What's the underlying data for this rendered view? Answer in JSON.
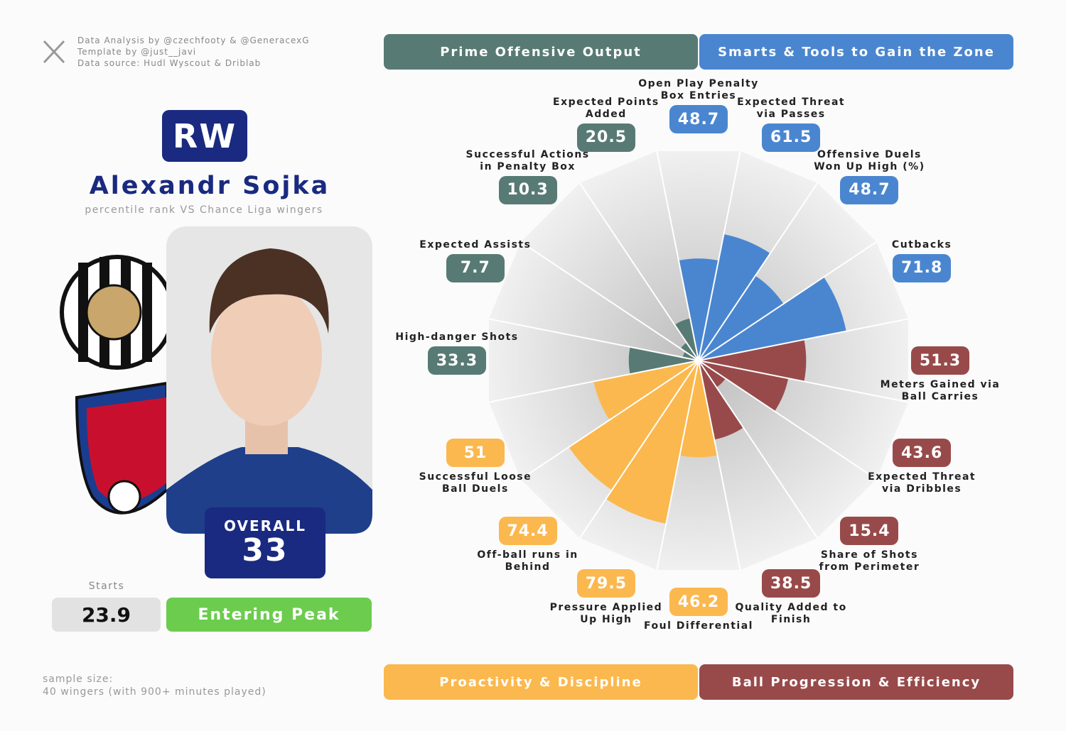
{
  "credits": {
    "lines": [
      "Data Analysis by @czechfooty & @GeneracexG",
      "Template by @just__javi",
      "Data source: Hudl Wyscout & Driblab"
    ]
  },
  "player": {
    "position": "RW",
    "name": "Alexandr Sojka",
    "subtitle": "percentile rank VS Chance Liga wingers",
    "overall_label": "OVERALL",
    "overall": 33,
    "starts_label": "Starts",
    "starts": 23.9,
    "stage": "Entering Peak"
  },
  "sample": [
    "sample size:",
    "40 wingers (with 900+ minutes played)"
  ],
  "chart_data": {
    "type": "pizza",
    "rlim": [
      0,
      100
    ],
    "series": [
      {
        "name": "Smarts & Tools to Gain the Zone",
        "color": "#4a86d0",
        "categories": [
          "Open Play Penalty Box Entries",
          "Expected Threat via Passes",
          "Offensive Duels Won Up High (%)",
          "Cutbacks"
        ],
        "values": [
          48.7,
          61.5,
          48.7,
          71.8
        ]
      },
      {
        "name": "Ball Progression & Efficiency",
        "color": "#984a4a",
        "categories": [
          "Meters Gained via Ball Carries",
          "Expected Threat via Dribbles",
          "Share of Shots from Perimeter",
          "Quality Added to Finish"
        ],
        "values": [
          51.3,
          43.6,
          15.4,
          38.5
        ]
      },
      {
        "name": "Proactivity & Discipline",
        "color": "#fbb84e",
        "categories": [
          "Foul Differential",
          "Pressure Applied Up High",
          "Off-ball runs in Behind",
          "Successful Loose Ball Duels"
        ],
        "values": [
          46.2,
          79.5,
          74.4,
          51
        ]
      },
      {
        "name": "Prime Offensive Output",
        "color": "#587a74",
        "categories": [
          "High-danger Shots",
          "Expected Assists",
          "Successful Actions in Penalty Box",
          "Expected Points Added"
        ],
        "values": [
          33.3,
          7.7,
          10.3,
          20.5
        ]
      }
    ]
  }
}
